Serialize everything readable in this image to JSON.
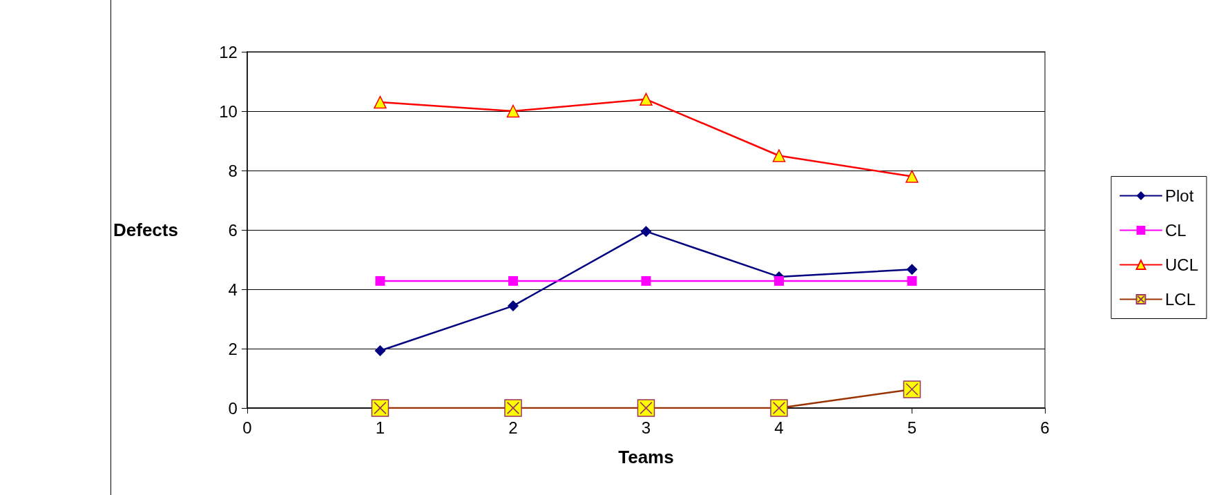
{
  "chart_data": {
    "type": "line",
    "xlabel": "Teams",
    "ylabel": "Defects",
    "x": [
      1,
      2,
      3,
      4,
      5
    ],
    "series": [
      {
        "name": "Plot",
        "color": "#000080",
        "marker": "diamond",
        "values": [
          1.93,
          3.44,
          5.95,
          4.42,
          4.67
        ]
      },
      {
        "name": "CL",
        "color": "#ff00ff",
        "marker": "square",
        "values": [
          4.28,
          4.28,
          4.28,
          4.28,
          4.28
        ]
      },
      {
        "name": "UCL",
        "color": "#ff0000",
        "marker": "triangle",
        "values": [
          10.3,
          10.0,
          10.4,
          8.5,
          7.8
        ]
      },
      {
        "name": "LCL",
        "color": "#993300",
        "marker": "cross",
        "values": [
          0,
          0,
          0,
          0,
          0.63
        ]
      }
    ],
    "xlim": [
      0,
      6
    ],
    "xticks": [
      0,
      1,
      2,
      3,
      4,
      5,
      6
    ],
    "ylim": [
      0,
      12
    ],
    "yticks": [
      0,
      2,
      4,
      6,
      8,
      10,
      12
    ],
    "grid": "y",
    "legend": "right",
    "line_style": "solid"
  }
}
